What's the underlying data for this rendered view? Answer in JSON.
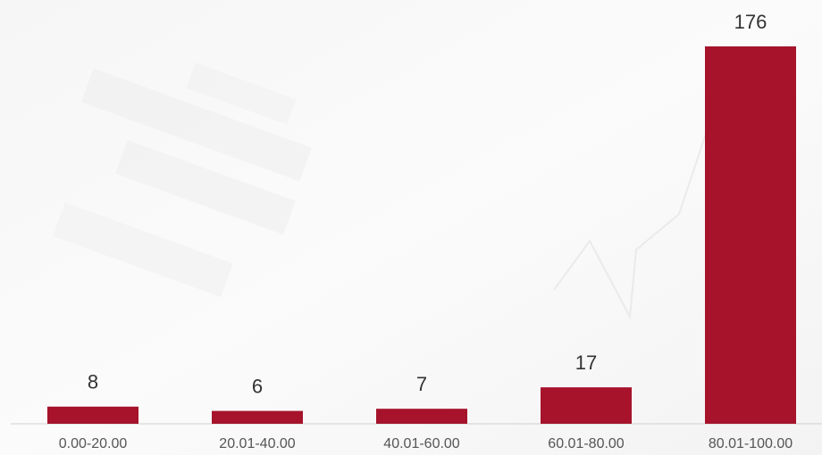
{
  "chart_data": {
    "type": "bar",
    "categories": [
      "0.00-20.00",
      "20.01-40.00",
      "40.01-60.00",
      "60.01-80.00",
      "80.01-100.00"
    ],
    "values": [
      8,
      6,
      7,
      17,
      176
    ],
    "color": "#a6132b"
  }
}
